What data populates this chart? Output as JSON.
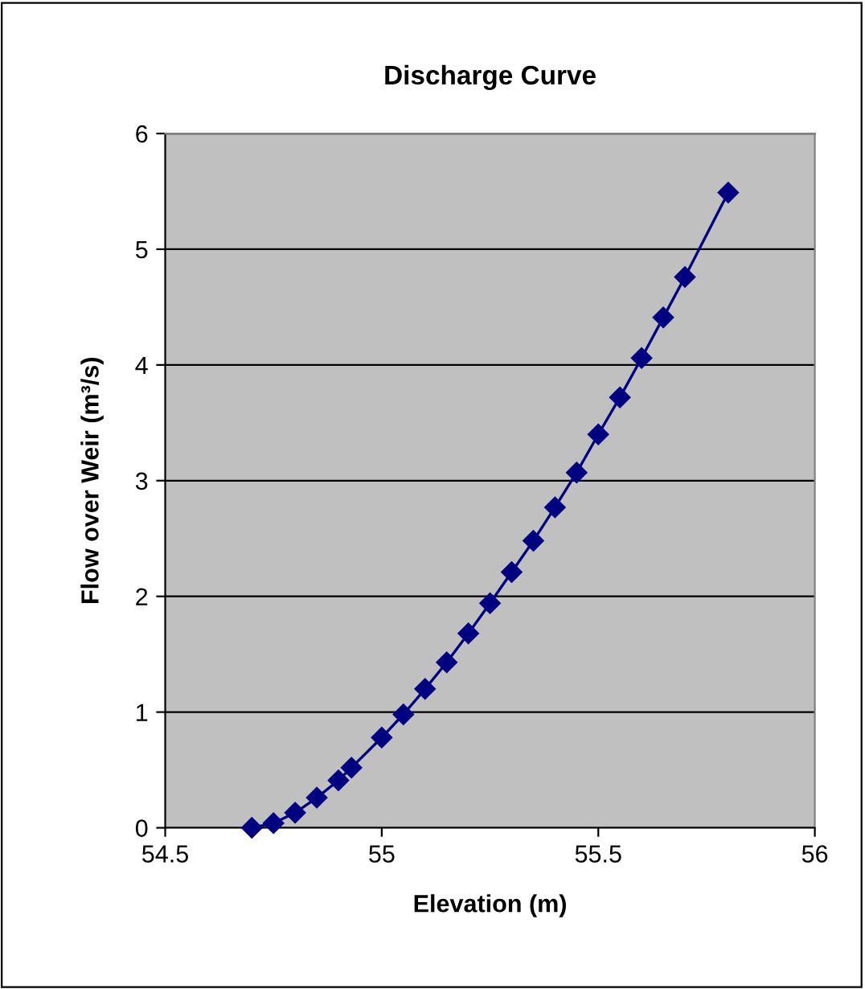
{
  "chart_data": {
    "type": "line",
    "title": "Discharge Curve",
    "xlabel": "Elevation (m)",
    "ylabel": "Flow over Weir (m³/s)",
    "series": [
      {
        "color": "#000080",
        "x": [
          54.7,
          54.75,
          54.8,
          54.85,
          54.9,
          54.93,
          55.0,
          55.05,
          55.1,
          55.15,
          55.2,
          55.25,
          55.3,
          55.35,
          55.4,
          55.45,
          55.5,
          55.55,
          55.6,
          55.65,
          55.7,
          55.8
        ],
        "values": [
          0,
          0.04,
          0.13,
          0.26,
          0.41,
          0.52,
          0.78,
          0.98,
          1.2,
          1.43,
          1.68,
          1.94,
          2.21,
          2.48,
          2.77,
          3.07,
          3.4,
          3.72,
          4.06,
          4.41,
          4.76,
          5.49
        ]
      }
    ],
    "xlim": [
      54.5,
      56
    ],
    "xticks": [
      54.5,
      55,
      55.5,
      56
    ],
    "ylim": [
      0,
      6
    ],
    "yticks": [
      0,
      1,
      2,
      3,
      4,
      5,
      6
    ],
    "grid": "y",
    "legend": false,
    "marker": "diamond",
    "line_style": "solid"
  }
}
